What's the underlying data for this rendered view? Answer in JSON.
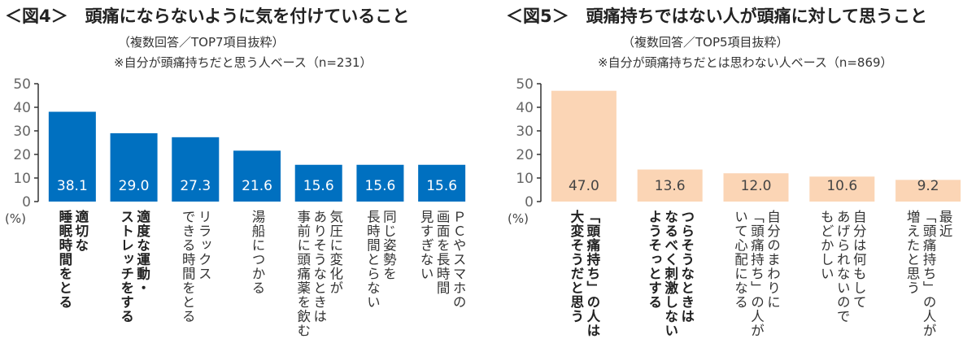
{
  "chart_data": [
    {
      "type": "bar",
      "title": "＜図4＞　頭痛にならないように気を付けていること",
      "subtitle": "（複数回答／TOP7項目抜粋）",
      "note": "※自分が頭痛持ちだと思う人ベース（n=231）",
      "ylabel": "(%)",
      "ylim": [
        0,
        50
      ],
      "yticks": [
        0,
        10,
        20,
        30,
        40,
        50
      ],
      "color": "#0070c0",
      "value_label_color": "#ffffff",
      "categories": [
        "適切な\n睡眠時間をとる",
        "適度な運動・\nストレッチをする",
        "リラックス\nできる時間をとる",
        "湯船につかる",
        "気圧に変化が\nありそうなときは\n事前に頭痛薬を飲む",
        "同じ姿勢を\n長時間とらない",
        "ＰＣやスマホの\n画面を長時間\n見すぎない"
      ],
      "bold_categories": [
        0,
        1
      ],
      "values": [
        38.1,
        29.0,
        27.3,
        21.6,
        15.6,
        15.6,
        15.6
      ],
      "value_labels": [
        "38.1",
        "29.0",
        "27.3",
        "21.6",
        "15.6",
        "15.6",
        "15.6"
      ]
    },
    {
      "type": "bar",
      "title": "＜図5＞　頭痛持ちではない人が頭痛に対して思うこと",
      "subtitle": "（複数回答／TOP5項目抜粋）",
      "note": "※自分が頭痛持ちだとは思わない人ベース（n=869）",
      "ylabel": "(%)",
      "ylim": [
        0,
        50
      ],
      "yticks": [
        0,
        10,
        20,
        30,
        40,
        50
      ],
      "color": "#fbd5b5",
      "value_label_color": "#444444",
      "categories": [
        "「頭痛持ち」の人は\n大変そうだと思う",
        "つらそうなときは\nなるべく刺激しない\nようそっとする",
        "自分のまわりに\n「頭痛持ち」の人が\nいて心配になる",
        "自分は何もして\nあげられないので\nもどかしい",
        "最近\n「頭痛持ち」の人が\n増えたと思う"
      ],
      "bold_categories": [
        0,
        1
      ],
      "values": [
        47.0,
        13.6,
        12.0,
        10.6,
        9.2
      ],
      "value_labels": [
        "47.0",
        "13.6",
        "12.0",
        "10.6",
        "9.2"
      ]
    }
  ]
}
